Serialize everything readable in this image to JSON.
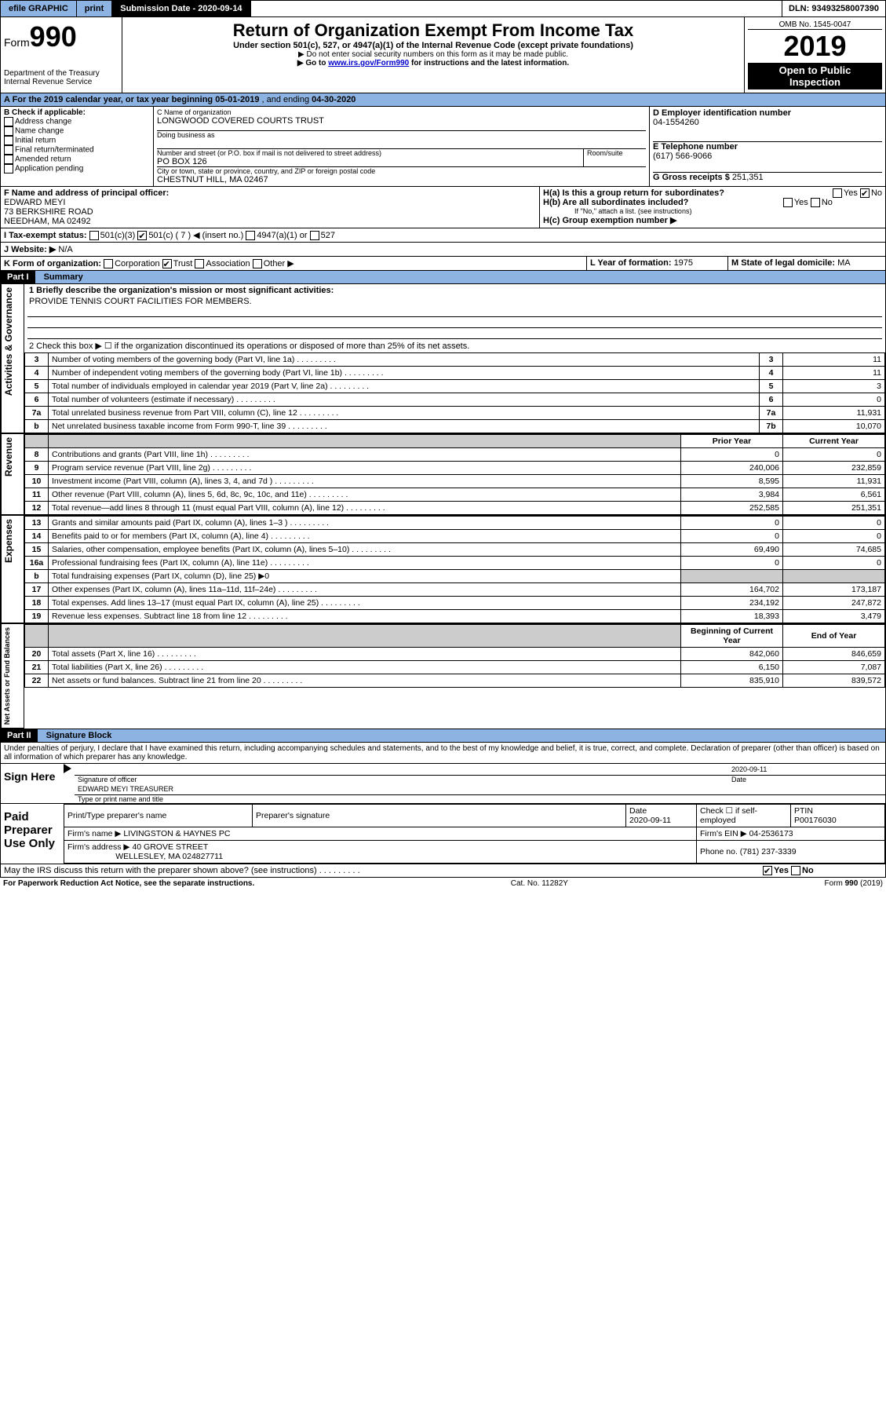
{
  "topbar": {
    "efile": "efile GRAPHIC",
    "print": "print",
    "submission_label": "Submission Date - ",
    "submission_date": "2020-09-14",
    "dln_label": "DLN: ",
    "dln": "93493258007390"
  },
  "header": {
    "form_label": "Form",
    "form_number": "990",
    "dept": "Department of the Treasury",
    "irs": "Internal Revenue Service",
    "title": "Return of Organization Exempt From Income Tax",
    "subtitle1": "Under section 501(c), 527, or 4947(a)(1) of the Internal Revenue Code (except private foundations)",
    "subtitle2": "▶ Do not enter social security numbers on this form as it may be made public.",
    "subtitle3_pre": "▶ Go to ",
    "subtitle3_link": "www.irs.gov/Form990",
    "subtitle3_post": " for instructions and the latest information.",
    "omb_label": "OMB No. ",
    "omb": "1545-0047",
    "year": "2019",
    "open": "Open to Public",
    "inspection": "Inspection"
  },
  "period": {
    "a_label": "A For the 2019 calendar year, or tax year beginning ",
    "begin": "05-01-2019",
    "mid": " , and ending ",
    "end": "04-30-2020"
  },
  "box_b": {
    "label": "B Check if applicable:",
    "addr": "Address change",
    "name": "Name change",
    "initial": "Initial return",
    "final": "Final return/terminated",
    "amended": "Amended return",
    "app": "Application pending"
  },
  "box_c": {
    "name_label": "C Name of organization",
    "name": "LONGWOOD COVERED COURTS TRUST",
    "dba_label": "Doing business as",
    "addr_label": "Number and street (or P.O. box if mail is not delivered to street address)",
    "room_label": "Room/suite",
    "addr": "PO BOX 126",
    "city_label": "City or town, state or province, country, and ZIP or foreign postal code",
    "city": "CHESTNUT HILL, MA  02467"
  },
  "box_d": {
    "label": "D Employer identification number",
    "ein": "04-1554260"
  },
  "box_e": {
    "label": "E Telephone number",
    "phone": "(617) 566-9066"
  },
  "box_g": {
    "label": "G Gross receipts $ ",
    "amount": "251,351"
  },
  "box_f": {
    "label": "F Name and address of principal officer:",
    "name": "EDWARD MEYI",
    "addr1": "73 BERKSHIRE ROAD",
    "addr2": "NEEDHAM, MA  02492"
  },
  "box_h": {
    "a_label": "H(a)  Is this a group return for subordinates?",
    "b_label": "H(b)  Are all subordinates included?",
    "b_note": "If \"No,\" attach a list. (see instructions)",
    "c_label": "H(c)  Group exemption number ▶",
    "yes": "Yes",
    "no": "No"
  },
  "box_i": {
    "label": "I   Tax-exempt status:",
    "c3": "501(c)(3)",
    "c": "501(c) ( 7 ) ◀ (insert no.)",
    "a1": "4947(a)(1) or",
    "s527": "527"
  },
  "box_j": {
    "label": "J   Website: ▶",
    "value": "N/A"
  },
  "box_k": {
    "label": "K Form of organization:",
    "corp": "Corporation",
    "trust": "Trust",
    "assoc": "Association",
    "other": "Other ▶"
  },
  "box_l": {
    "label": "L Year of formation: ",
    "value": "1975"
  },
  "box_m": {
    "label": "M State of legal domicile: ",
    "value": "MA"
  },
  "part1": {
    "header": "Part I",
    "title": "Summary",
    "side1": "Activities & Governance",
    "side2": "Revenue",
    "side3": "Expenses",
    "side4": "Net Assets or Fund Balances",
    "q1": "1  Briefly describe the organization's mission or most significant activities:",
    "q1_val": "PROVIDE TENNIS COURT FACILITIES FOR MEMBERS.",
    "q2": "2  Check this box ▶ ☐  if the organization discontinued its operations or disposed of more than 25% of its net assets.",
    "rows_gov": [
      {
        "n": "3",
        "label": "Number of voting members of the governing body (Part VI, line 1a)",
        "box": "3",
        "val": "11"
      },
      {
        "n": "4",
        "label": "Number of independent voting members of the governing body (Part VI, line 1b)",
        "box": "4",
        "val": "11"
      },
      {
        "n": "5",
        "label": "Total number of individuals employed in calendar year 2019 (Part V, line 2a)",
        "box": "5",
        "val": "3"
      },
      {
        "n": "6",
        "label": "Total number of volunteers (estimate if necessary)",
        "box": "6",
        "val": "0"
      },
      {
        "n": "7a",
        "label": "Total unrelated business revenue from Part VIII, column (C), line 12",
        "box": "7a",
        "val": "11,931"
      },
      {
        "n": "b",
        "label": "Net unrelated business taxable income from Form 990-T, line 39",
        "box": "7b",
        "val": "10,070"
      }
    ],
    "prior_header": "Prior Year",
    "current_header": "Current Year",
    "rows_rev": [
      {
        "n": "8",
        "label": "Contributions and grants (Part VIII, line 1h)",
        "prior": "0",
        "curr": "0"
      },
      {
        "n": "9",
        "label": "Program service revenue (Part VIII, line 2g)",
        "prior": "240,006",
        "curr": "232,859"
      },
      {
        "n": "10",
        "label": "Investment income (Part VIII, column (A), lines 3, 4, and 7d )",
        "prior": "8,595",
        "curr": "11,931"
      },
      {
        "n": "11",
        "label": "Other revenue (Part VIII, column (A), lines 5, 6d, 8c, 9c, 10c, and 11e)",
        "prior": "3,984",
        "curr": "6,561"
      },
      {
        "n": "12",
        "label": "Total revenue—add lines 8 through 11 (must equal Part VIII, column (A), line 12)",
        "prior": "252,585",
        "curr": "251,351"
      }
    ],
    "rows_exp": [
      {
        "n": "13",
        "label": "Grants and similar amounts paid (Part IX, column (A), lines 1–3 )",
        "prior": "0",
        "curr": "0"
      },
      {
        "n": "14",
        "label": "Benefits paid to or for members (Part IX, column (A), line 4)",
        "prior": "0",
        "curr": "0"
      },
      {
        "n": "15",
        "label": "Salaries, other compensation, employee benefits (Part IX, column (A), lines 5–10)",
        "prior": "69,490",
        "curr": "74,685"
      },
      {
        "n": "16a",
        "label": "Professional fundraising fees (Part IX, column (A), line 11e)",
        "prior": "0",
        "curr": "0"
      },
      {
        "n": "b",
        "label": "Total fundraising expenses (Part IX, column (D), line 25) ▶0",
        "prior": "",
        "curr": ""
      },
      {
        "n": "17",
        "label": "Other expenses (Part IX, column (A), lines 11a–11d, 11f–24e)",
        "prior": "164,702",
        "curr": "173,187"
      },
      {
        "n": "18",
        "label": "Total expenses. Add lines 13–17 (must equal Part IX, column (A), line 25)",
        "prior": "234,192",
        "curr": "247,872"
      },
      {
        "n": "19",
        "label": "Revenue less expenses. Subtract line 18 from line 12",
        "prior": "18,393",
        "curr": "3,479"
      }
    ],
    "begin_header": "Beginning of Current Year",
    "end_header": "End of Year",
    "rows_net": [
      {
        "n": "20",
        "label": "Total assets (Part X, line 16)",
        "prior": "842,060",
        "curr": "846,659"
      },
      {
        "n": "21",
        "label": "Total liabilities (Part X, line 26)",
        "prior": "6,150",
        "curr": "7,087"
      },
      {
        "n": "22",
        "label": "Net assets or fund balances. Subtract line 21 from line 20",
        "prior": "835,910",
        "curr": "839,572"
      }
    ]
  },
  "part2": {
    "header": "Part II",
    "title": "Signature Block",
    "perjury": "Under penalties of perjury, I declare that I have examined this return, including accompanying schedules and statements, and to the best of my knowledge and belief, it is true, correct, and complete. Declaration of preparer (other than officer) is based on all information of which preparer has any knowledge.",
    "sign_here": "Sign Here",
    "sig_date": "2020-09-11",
    "sig_officer": "Signature of officer",
    "date_label": "Date",
    "officer_name": "EDWARD MEYI TREASURER",
    "type_name": "Type or print name and title",
    "paid": "Paid Preparer Use Only",
    "prep_name_label": "Print/Type preparer's name",
    "prep_sig_label": "Preparer's signature",
    "prep_date_label": "Date",
    "prep_date": "2020-09-11",
    "check_if": "Check ☐ if self-employed",
    "ptin_label": "PTIN",
    "ptin": "P00176030",
    "firm_name_label": "Firm's name    ▶ ",
    "firm_name": "LIVINGSTON & HAYNES PC",
    "firm_ein_label": "Firm's EIN ▶ ",
    "firm_ein": "04-2536173",
    "firm_addr_label": "Firm's address ▶ ",
    "firm_addr1": "40 GROVE STREET",
    "firm_addr2": "WELLESLEY, MA  024827711",
    "firm_phone_label": "Phone no. ",
    "firm_phone": "(781) 237-3339",
    "discuss": "May the IRS discuss this return with the preparer shown above? (see instructions)"
  },
  "footer": {
    "paperwork": "For Paperwork Reduction Act Notice, see the separate instructions.",
    "cat": "Cat. No. 11282Y",
    "form": "Form 990 (2019)"
  }
}
